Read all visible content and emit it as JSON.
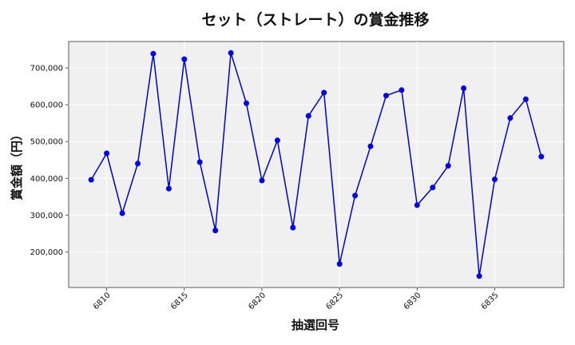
{
  "chart_data": {
    "type": "line",
    "title": "セット（ストレート）の賞金推移",
    "xlabel": "抽選回号",
    "ylabel": "賞金額（円）",
    "x": [
      6809,
      6810,
      6811,
      6812,
      6813,
      6814,
      6815,
      6816,
      6817,
      6818,
      6819,
      6820,
      6821,
      6822,
      6823,
      6824,
      6825,
      6826,
      6827,
      6828,
      6829,
      6830,
      6831,
      6832,
      6833,
      6834,
      6835,
      6836,
      6837,
      6838
    ],
    "values": [
      396000,
      468000,
      305000,
      440000,
      739000,
      372000,
      724000,
      444000,
      258000,
      741000,
      604000,
      394000,
      503000,
      266000,
      570000,
      633000,
      167000,
      353000,
      487000,
      625000,
      640000,
      327000,
      375000,
      434000,
      645000,
      134000,
      397000,
      564000,
      615000,
      459000
    ],
    "xticks": [
      "6810",
      "6815",
      "6820",
      "6825",
      "6830",
      "6835"
    ],
    "yticks": [
      "200,000",
      "300,000",
      "400,000",
      "500,000",
      "600,000",
      "700,000"
    ],
    "xlim": [
      6807.55,
      6839.45
    ],
    "ylim": [
      103000,
      772000
    ],
    "grid": true,
    "line_color": "#0000cc",
    "marker_color": "#0000ee",
    "plot_bg": "#f0f0f0"
  }
}
